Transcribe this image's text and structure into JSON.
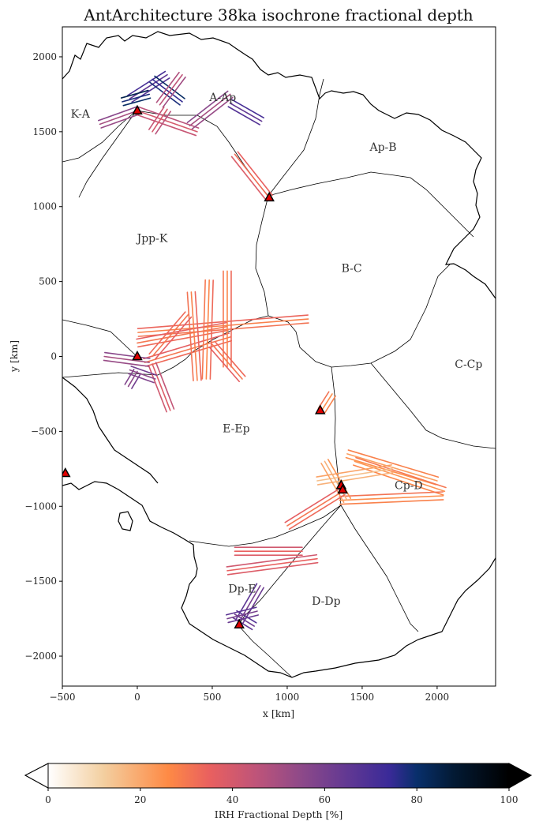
{
  "chart_data": {
    "type": "scatter",
    "title": "AntArchitecture 38ka isochrone fractional depth",
    "xlabel": "x [km]",
    "ylabel": "y [km]",
    "xlim": [
      -500,
      2390
    ],
    "ylim": [
      -2200,
      2200
    ],
    "xticks": [
      -500,
      0,
      500,
      1000,
      1500,
      2000
    ],
    "yticks": [
      2000,
      1500,
      1000,
      500,
      0,
      -500,
      -1000,
      -1500,
      -2000
    ],
    "xtick_labels": [
      "−500",
      "0",
      "500",
      "1000",
      "1500",
      "2000"
    ],
    "ytick_labels": [
      "2000",
      "1500",
      "1000",
      "500",
      "0",
      "−500",
      "−1000",
      "−1500",
      "−2000"
    ],
    "grid": false,
    "region_labels": [
      {
        "text": "K-A",
        "x": -380,
        "y": 1620
      },
      {
        "text": "A-Ap",
        "x": 570,
        "y": 1730
      },
      {
        "text": "Ap-B",
        "x": 1640,
        "y": 1400
      },
      {
        "text": "Jpp-K",
        "x": 100,
        "y": 790
      },
      {
        "text": "B-C",
        "x": 1430,
        "y": 590
      },
      {
        "text": "C-Cp",
        "x": 2210,
        "y": -50
      },
      {
        "text": "E-Ep",
        "x": 660,
        "y": -480
      },
      {
        "text": "Cp-D",
        "x": 1810,
        "y": -860
      },
      {
        "text": "Dp-E",
        "x": 700,
        "y": -1550
      },
      {
        "text": "D-Dp",
        "x": 1260,
        "y": -1630
      }
    ],
    "markers": [
      {
        "x": 0,
        "y": 1640
      },
      {
        "x": 880,
        "y": 1060
      },
      {
        "x": 0,
        "y": 0
      },
      {
        "x": 1220,
        "y": -360
      },
      {
        "x": -480,
        "y": -780
      },
      {
        "x": 1360,
        "y": -860
      },
      {
        "x": 1370,
        "y": -890
      },
      {
        "x": 680,
        "y": -1790
      }
    ],
    "marker_color": "#e00000",
    "flight_lines": [
      {
        "x": [
          5,
          1140
        ],
        "y": [
          160,
          250
        ],
        "depth": 28
      },
      {
        "x": [
          0,
          600
        ],
        "y": [
          90,
          200
        ],
        "depth": 30
      },
      {
        "x": [
          50,
          620
        ],
        "y": [
          -40,
          130
        ],
        "depth": 30
      },
      {
        "x": [
          600,
          600
        ],
        "y": [
          570,
          -70
        ],
        "depth": 27
      },
      {
        "x": [
          480,
          460
        ],
        "y": [
          510,
          -150
        ],
        "depth": 27
      },
      {
        "x": [
          360,
          400
        ],
        "y": [
          430,
          -160
        ],
        "depth": 28
      },
      {
        "x": [
          100,
          220
        ],
        "y": [
          -50,
          -360
        ],
        "depth": 38
      },
      {
        "x": [
          -220,
          80
        ],
        "y": [
          0,
          -40
        ],
        "depth": 50
      },
      {
        "x": [
          0,
          -60
        ],
        "y": [
          -100,
          -200
        ],
        "depth": 55
      },
      {
        "x": [
          -50,
          120
        ],
        "y": [
          -90,
          -150
        ],
        "depth": 55
      },
      {
        "x": [
          340,
          100
        ],
        "y": [
          280,
          0
        ],
        "depth": 30
      },
      {
        "x": [
          700,
          500
        ],
        "y": [
          -150,
          80
        ],
        "depth": 30
      },
      {
        "x": [
          1400,
          2000
        ],
        "y": [
          -650,
          -830
        ],
        "depth": 22
      },
      {
        "x": [
          1450,
          2050
        ],
        "y": [
          -700,
          -900
        ],
        "depth": 24
      },
      {
        "x": [
          1200,
          1700
        ],
        "y": [
          -830,
          -750
        ],
        "depth": 15
      },
      {
        "x": [
          1350,
          2040
        ],
        "y": [
          -960,
          -930
        ],
        "depth": 25
      },
      {
        "x": [
          1250,
          1400
        ],
        "y": [
          -700,
          -960
        ],
        "depth": 18
      },
      {
        "x": [
          1000,
          1370
        ],
        "y": [
          -1130,
          -900
        ],
        "depth": 30
      },
      {
        "x": [
          1230,
          1300
        ],
        "y": [
          -360,
          -250
        ],
        "depth": 25
      },
      {
        "x": [
          650,
          1100
        ],
        "y": [
          -1300,
          -1300
        ],
        "depth": 35
      },
      {
        "x": [
          600,
          1200
        ],
        "y": [
          -1430,
          -1350
        ],
        "depth": 35
      },
      {
        "x": [
          680,
          820
        ],
        "y": [
          -1770,
          -1530
        ],
        "depth": 60
      },
      {
        "x": [
          650,
          780
        ],
        "y": [
          -1720,
          -1800
        ],
        "depth": 62
      },
      {
        "x": [
          600,
          800
        ],
        "y": [
          -1750,
          -1700
        ],
        "depth": 60
      },
      {
        "x": [
          -50,
          200
        ],
        "y": [
          1720,
          1880
        ],
        "depth": 65
      },
      {
        "x": [
          100,
          300
        ],
        "y": [
          1850,
          1700
        ],
        "depth": 75
      },
      {
        "x": [
          -100,
          80
        ],
        "y": [
          1700,
          1750
        ],
        "depth": 78
      },
      {
        "x": [
          -250,
          0
        ],
        "y": [
          1550,
          1640
        ],
        "depth": 50
      },
      {
        "x": [
          0,
          400
        ],
        "y": [
          1640,
          1500
        ],
        "depth": 40
      },
      {
        "x": [
          350,
          620
        ],
        "y": [
          1540,
          1750
        ],
        "depth": 50
      },
      {
        "x": [
          620,
          830
        ],
        "y": [
          1690,
          1570
        ],
        "depth": 65
      },
      {
        "x": [
          880,
          650
        ],
        "y": [
          1060,
          1350
        ],
        "depth": 32
      },
      {
        "x": [
          300,
          150
        ],
        "y": [
          1880,
          1680
        ],
        "depth": 45
      },
      {
        "x": [
          200,
          100
        ],
        "y": [
          1650,
          1500
        ],
        "depth": 40
      }
    ],
    "colorbar": {
      "label": "IRH Fractional Depth [%]",
      "range": [
        0,
        100
      ],
      "ticks": [
        0,
        20,
        40,
        60,
        80,
        100
      ],
      "tick_labels": [
        "0",
        "20",
        "40",
        "60",
        "80",
        "100"
      ],
      "extend": "both",
      "colormap": [
        {
          "v": 0,
          "c": "#ffffff"
        },
        {
          "v": 12,
          "c": "#f3cfa0"
        },
        {
          "v": 26,
          "c": "#fe8a45"
        },
        {
          "v": 35,
          "c": "#e9605f"
        },
        {
          "v": 45,
          "c": "#bf5479"
        },
        {
          "v": 55,
          "c": "#8d4989"
        },
        {
          "v": 65,
          "c": "#613893"
        },
        {
          "v": 74,
          "c": "#3a2a98"
        },
        {
          "v": 80,
          "c": "#082f6b"
        },
        {
          "v": 88,
          "c": "#031a34"
        },
        {
          "v": 100,
          "c": "#000000"
        }
      ]
    }
  }
}
